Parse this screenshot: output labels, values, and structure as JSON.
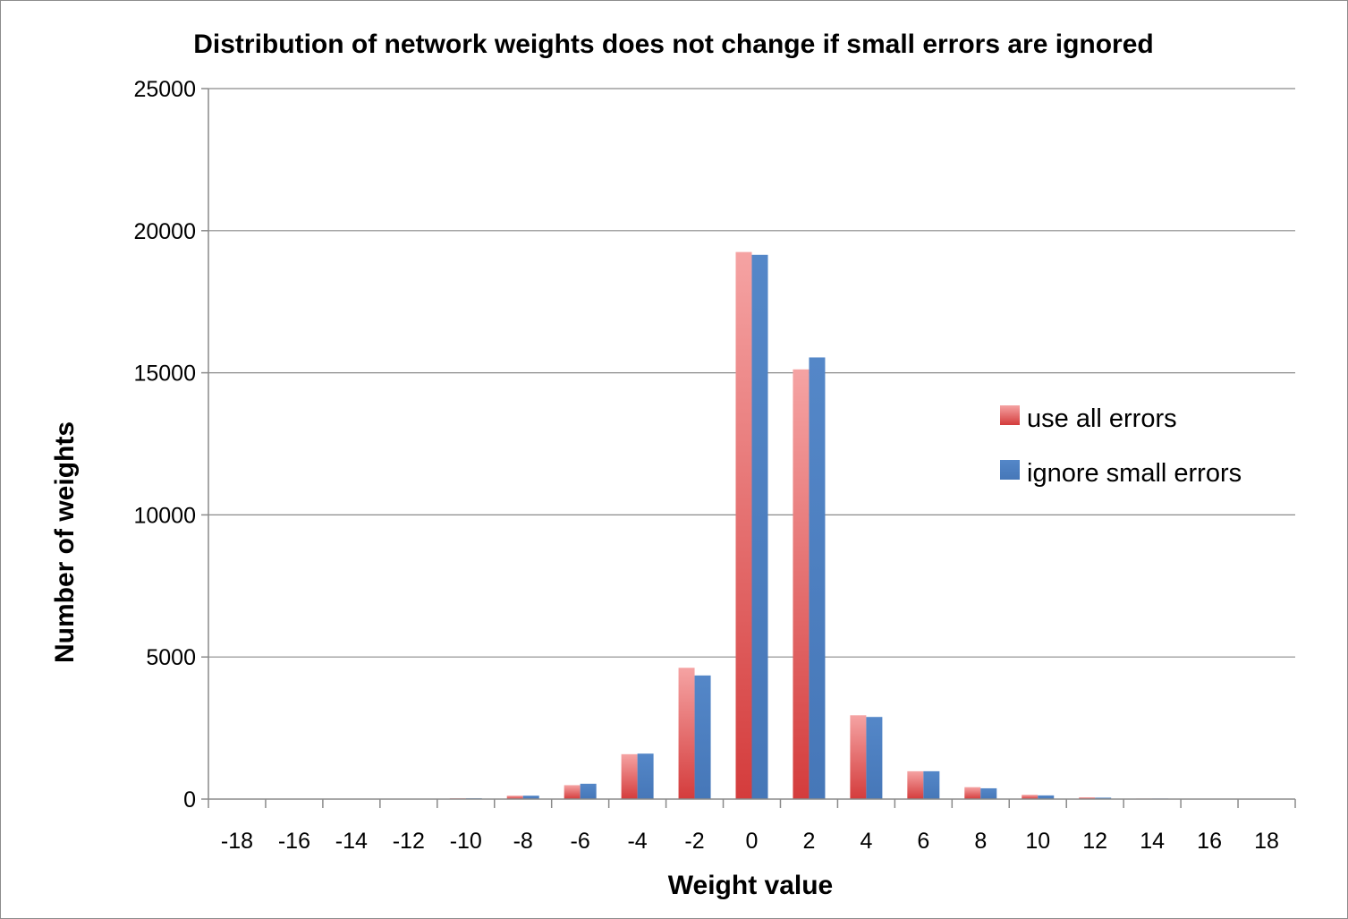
{
  "chart_data": {
    "type": "bar",
    "title": "Distribution of network weights does not change if small errors are ignored",
    "xlabel": "Weight value",
    "ylabel": "Number of weights",
    "categories": [
      "-18",
      "-16",
      "-14",
      "-12",
      "-10",
      "-8",
      "-6",
      "-4",
      "-2",
      "0",
      "2",
      "4",
      "6",
      "8",
      "10",
      "12",
      "14",
      "16",
      "18"
    ],
    "series": [
      {
        "name": "use all errors",
        "color": "#d94545",
        "values": [
          0,
          5,
          10,
          15,
          30,
          120,
          490,
          1580,
          4620,
          19250,
          15120,
          2950,
          980,
          420,
          150,
          60,
          20,
          10,
          5
        ]
      },
      {
        "name": "ignore small errors",
        "color": "#4f7fbf",
        "values": [
          0,
          5,
          10,
          15,
          30,
          120,
          540,
          1600,
          4350,
          19150,
          15540,
          2890,
          980,
          380,
          130,
          50,
          20,
          10,
          5
        ]
      }
    ],
    "ylim": [
      0,
      25000
    ],
    "yticks": [
      "0",
      "5000",
      "10000",
      "15000",
      "20000",
      "25000"
    ],
    "grid": true,
    "legend_position": "right"
  }
}
